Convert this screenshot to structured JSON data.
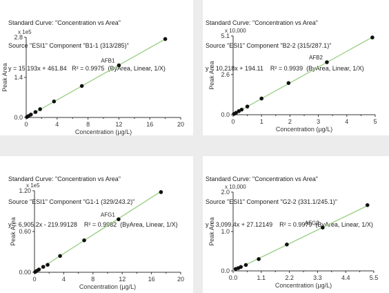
{
  "panels": [
    {
      "header": [
        "Standard Curve: \"Concentration vs Area\"",
        "Source \"ESI1\" Component \"B1-1 (313/285)\"",
        "y = 15,193x + 461.84   R² = 0.9975  (ByArea, Linear, 1/X)"
      ],
      "multiplier": "x 1e5"
    },
    {
      "header": [
        "Standard Curve: \"Concentration vs Area\"",
        "Source \"ESI1\" Component \"B2-2 (315/287.1)\"",
        "y = 10,218x + 194.11    R² = 0.9939  (ByArea, Linear, 1/X)"
      ],
      "multiplier": "x 10,000"
    },
    {
      "header": [
        "Standard Curve: \"Concentration vs Area\"",
        "Source \"ESI1\" Component \"G1-1 (329/243.2)\"",
        "y = 6,905.2x - 219.99128    R² = 0.9982  (ByArea, Linear, 1/X)"
      ],
      "multiplier": "x 1e5"
    },
    {
      "header": [
        "Standard Curve: \"Concentration vs Area\"",
        "Source \"ESI1\" Component \"G2-2 (331.1/245.1)\"",
        "y = 3,099.4x + 27.12149    R² = 0.9979  (ByArea, Linear, 1/X)"
      ],
      "multiplier": "x 10,000"
    }
  ],
  "chart_data": [
    {
      "type": "scatter",
      "title": "",
      "annotation": "AFB1",
      "xlabel": "Concentration (µg/L)",
      "ylabel": "Peak Area",
      "xlim": [
        0,
        20
      ],
      "ylim": [
        0,
        2.8
      ],
      "xticks": [
        0,
        4,
        8,
        12,
        16,
        20
      ],
      "yticks": [
        0,
        1.4,
        2.8
      ],
      "ytick_labels": [
        "0.0",
        "1.4",
        "2.8"
      ],
      "fit": {
        "x": [
          0,
          18
        ],
        "y": [
          0.005,
          2.74
        ]
      },
      "x": [
        0.1,
        0.3,
        0.6,
        1.2,
        1.8,
        3.6,
        7.2,
        12,
        18
      ],
      "y": [
        0.02,
        0.05,
        0.1,
        0.19,
        0.29,
        0.56,
        1.1,
        1.82,
        2.74
      ],
      "colors": {
        "line": "#9fd18a",
        "point": "#111111"
      }
    },
    {
      "type": "scatter",
      "title": "",
      "annotation": "AFB2",
      "xlabel": "Concentration (µg/L)",
      "ylabel": "Peak Area",
      "xlim": [
        0,
        5
      ],
      "ylim": [
        0,
        5.1
      ],
      "xticks": [
        0,
        1,
        2,
        3,
        4,
        5
      ],
      "yticks": [
        0,
        2.6,
        5.1
      ],
      "ytick_labels": [
        "0.0",
        "2.6",
        "5.1"
      ],
      "fit": {
        "x": [
          0,
          4.9
        ],
        "y": [
          0.02,
          5.02
        ]
      },
      "x": [
        0.03,
        0.1,
        0.2,
        0.3,
        0.5,
        1.0,
        1.95,
        3.3,
        4.9
      ],
      "y": [
        0.05,
        0.12,
        0.23,
        0.33,
        0.53,
        1.05,
        2.05,
        3.4,
        5.0
      ],
      "colors": {
        "line": "#9fd18a",
        "point": "#111111"
      }
    },
    {
      "type": "scatter",
      "title": "",
      "annotation": "AFG1",
      "xlabel": "Concentration (µg/L)",
      "ylabel": "Peak Area",
      "xlim": [
        0,
        20
      ],
      "ylim": [
        0,
        1.2
      ],
      "xticks": [
        0,
        4,
        8,
        12,
        16,
        20
      ],
      "yticks": [
        0,
        0.6,
        1.2
      ],
      "ytick_labels": [
        "0.00",
        "0.60",
        "1.20"
      ],
      "fit": {
        "x": [
          0,
          17.3
        ],
        "y": [
          0,
          1.19
        ]
      },
      "x": [
        0.1,
        0.3,
        0.6,
        1.2,
        1.8,
        3.5,
        6.8,
        11.5,
        17.3
      ],
      "y": [
        0.005,
        0.02,
        0.04,
        0.08,
        0.11,
        0.24,
        0.47,
        0.78,
        1.18
      ],
      "colors": {
        "line": "#9fd18a",
        "point": "#111111"
      }
    },
    {
      "type": "scatter",
      "title": "",
      "annotation": "AFG2",
      "xlabel": "Concentration (µg/L)",
      "ylabel": "Peak Area",
      "xlim": [
        0,
        5.5
      ],
      "ylim": [
        0,
        2.0
      ],
      "xticks": [
        0,
        1.1,
        2.2,
        3.3,
        4.4,
        5.5
      ],
      "xtick_labels": [
        "0.0",
        "1.1",
        "2.2",
        "3.3",
        "4.4",
        "5.5"
      ],
      "yticks": [
        0,
        1.0,
        2.0
      ],
      "ytick_labels": [
        "0.0",
        "1.0",
        "2.0"
      ],
      "fit": {
        "x": [
          0,
          5.3
        ],
        "y": [
          0.0,
          1.67
        ]
      },
      "x": [
        0.1,
        0.2,
        0.3,
        0.5,
        1.0,
        2.1,
        3.5,
        5.25
      ],
      "y": [
        0.05,
        0.07,
        0.1,
        0.15,
        0.3,
        0.67,
        1.1,
        1.67
      ],
      "colors": {
        "line": "#9fd18a",
        "point": "#111111"
      }
    }
  ]
}
